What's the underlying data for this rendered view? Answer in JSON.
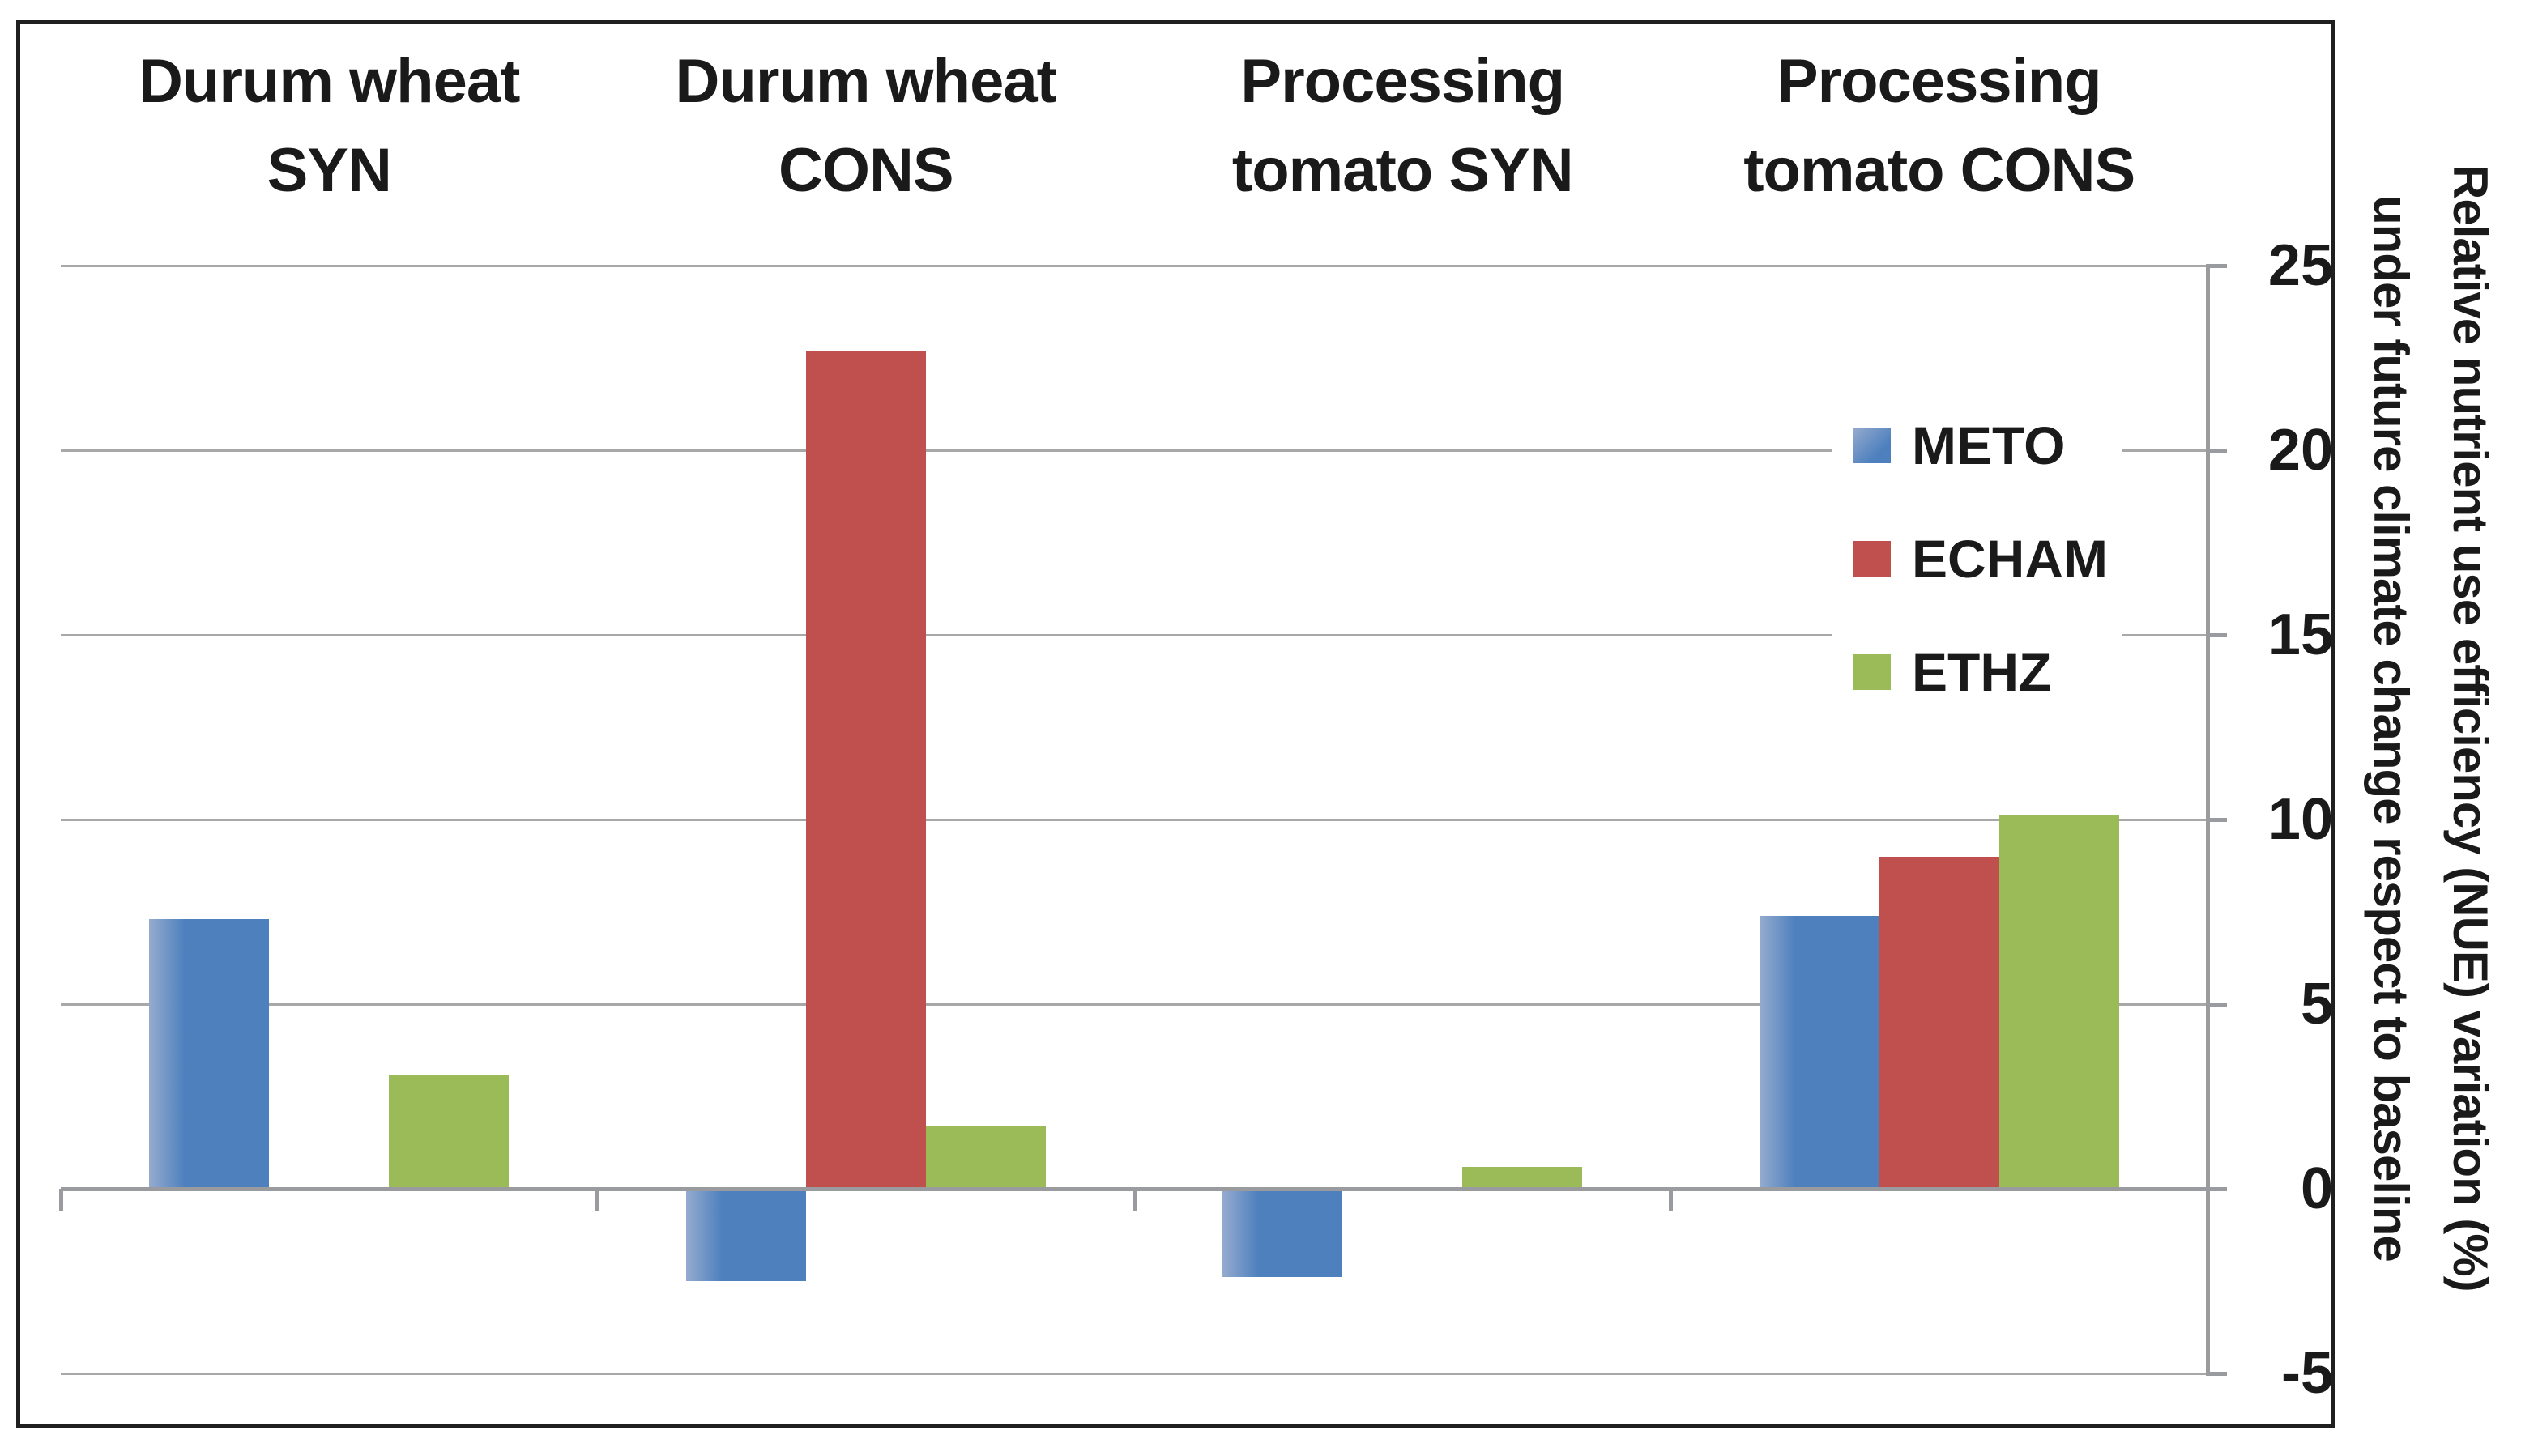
{
  "colors": {
    "background": "#ffffff",
    "text": "#1a1a1a",
    "border": "#1f1f1f",
    "gridline": "#a8a8a8",
    "axis": "#999b9e",
    "blue": "#4e80be",
    "blue_light": "#95abce",
    "red": "#c0504d",
    "green": "#9bbb59"
  },
  "chart_data": {
    "type": "bar",
    "title": "",
    "categories": [
      "Durum wheat SYN",
      "Durum wheat CONS",
      "Processing tomato SYN",
      "Processing tomato CONS"
    ],
    "categories_lines": [
      [
        "Durum wheat",
        "SYN"
      ],
      [
        "Durum wheat",
        "CONS"
      ],
      [
        "Processing",
        "tomato SYN"
      ],
      [
        "Processing",
        "tomato CONS"
      ]
    ],
    "series": [
      {
        "name": "METO",
        "color": "#4e80be",
        "color_light": "#95abce",
        "values": [
          7.3,
          -2.5,
          -2.4,
          7.4
        ]
      },
      {
        "name": "ECHAM",
        "color": "#c0504d",
        "values": [
          0,
          22.7,
          0,
          9.0
        ]
      },
      {
        "name": "ETHZ",
        "color": "#9bbb59",
        "values": [
          3.1,
          1.7,
          0.6,
          10.1
        ]
      }
    ],
    "xlabel": "",
    "ylabel": "Relative nutrient use efficiency (NUE) variation (%) under future climate change respect to baseline",
    "ylabel_lines": [
      "Relative nutrient use efficiency (NUE) variation (%)",
      "under future climate change respect to baseline"
    ],
    "ylim": [
      -5,
      25
    ],
    "yticks": [
      25,
      20,
      15,
      10,
      5,
      0,
      -5
    ],
    "grid": true,
    "legend_position": "inside-right",
    "value_axis_side": "right"
  }
}
